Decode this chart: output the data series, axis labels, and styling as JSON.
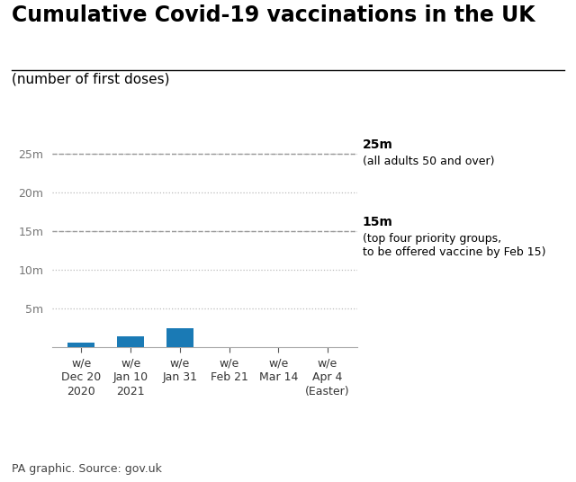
{
  "title": "Cumulative Covid-19 vaccinations in the UK",
  "subtitle": "(number of first doses)",
  "source": "PA graphic. Source: gov.uk",
  "bar_color": "#1a7ab5",
  "background_color": "#ffffff",
  "yticks": [
    5000000,
    10000000,
    15000000,
    20000000,
    25000000
  ],
  "ytick_labels": [
    "5m",
    "10m",
    "15m",
    "20m",
    "25m"
  ],
  "ylim": [
    0,
    28000000
  ],
  "x_positions": [
    0,
    1,
    2,
    3,
    4,
    5
  ],
  "x_labels": [
    "w/e\nDec 20\n2020",
    "w/e\nJan 10\n2021",
    "w/e\nJan 31",
    "w/e\nFeb 21",
    "w/e\nMar 14",
    "w/e\nApr 4\n(Easter)"
  ],
  "bar_values": [
    620000,
    1380000,
    2400000,
    0,
    0,
    0
  ],
  "ref_line_25m": 25000000,
  "ref_label_25m_bold": "25m",
  "ref_label_25m_text": "(all adults 50 and over)",
  "ref_line_15m": 15000000,
  "ref_label_15m_bold": "15m",
  "ref_label_15m_text": "(top four priority groups,\nto be offered vaccine by Feb 15)",
  "title_fontsize": 17,
  "subtitle_fontsize": 11,
  "source_fontsize": 9,
  "tick_label_fontsize": 9,
  "ytick_fontsize": 9,
  "annotation_fontsize": 10
}
